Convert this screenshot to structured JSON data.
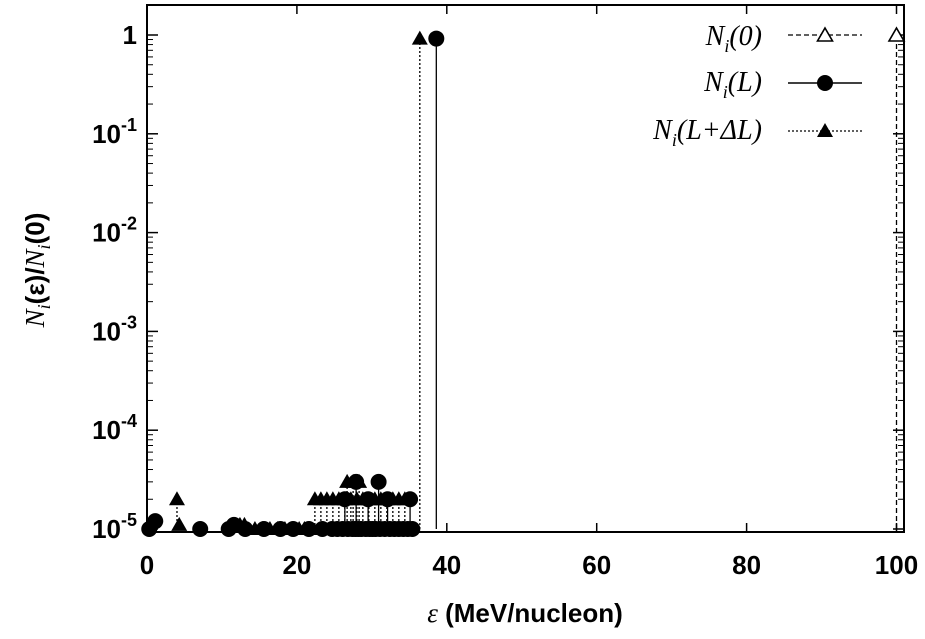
{
  "chart_data": {
    "type": "scatter",
    "title": "",
    "xlabel": {
      "symbol": "ε",
      "rest": " (MeV/nucleon)"
    },
    "ylabel": {
      "num_sym": "N",
      "num_sub": "i",
      "num_arg": "(ε)/",
      "den_sym": "N",
      "den_sub": "i",
      "den_arg": "(0)"
    },
    "xlim": [
      0,
      101
    ],
    "ylim": [
      1e-05,
      2
    ],
    "yscale": "log",
    "grid": false,
    "legend_position": "top-right",
    "x_ticks": [
      {
        "value": 0,
        "label": "0"
      },
      {
        "value": 20,
        "label": "20"
      },
      {
        "value": 40,
        "label": "40"
      },
      {
        "value": 60,
        "label": "60"
      },
      {
        "value": 80,
        "label": "80"
      },
      {
        "value": 100,
        "label": "100"
      }
    ],
    "y_ticks": [
      {
        "value": 1e-05,
        "base": "10",
        "exp": "-5"
      },
      {
        "value": 0.0001,
        "base": "10",
        "exp": "-4"
      },
      {
        "value": 0.001,
        "base": "10",
        "exp": "-3"
      },
      {
        "value": 0.01,
        "base": "10",
        "exp": "-2"
      },
      {
        "value": 0.1,
        "base": "10",
        "exp": "-1"
      },
      {
        "value": 1,
        "base": "1",
        "exp": ""
      }
    ],
    "series": [
      {
        "name": {
          "sym": "N",
          "sub": "i",
          "arg": "(0)"
        },
        "marker": "triangle-open",
        "line": "dashed",
        "x": [
          100
        ],
        "y": [
          1
        ]
      },
      {
        "name": {
          "sym": "N",
          "sub": "i",
          "arg": "(L)"
        },
        "marker": "circle-filled",
        "line": "solid",
        "x": [
          0.3,
          1.1,
          7.1,
          10.9,
          11.6,
          13.1,
          15.6,
          17.8,
          19.5,
          21.6,
          23.4,
          24.7,
          25.4,
          26.1,
          26.8,
          27.4,
          27.8,
          28.2,
          28.6,
          29.2,
          29.7,
          30.1,
          30.5,
          31.1,
          31.7,
          32.4,
          33.0,
          33.6,
          34.2,
          34.8,
          35.4,
          26.4,
          29.5,
          32.1,
          35.1,
          27.9,
          30.9,
          38.6
        ],
        "y": [
          1e-05,
          1.2e-05,
          1e-05,
          1e-05,
          1.1e-05,
          1e-05,
          1e-05,
          1e-05,
          1e-05,
          1e-05,
          1e-05,
          1e-05,
          1e-05,
          1e-05,
          1e-05,
          1e-05,
          1e-05,
          1e-05,
          1e-05,
          1e-05,
          1e-05,
          1e-05,
          1e-05,
          1e-05,
          1e-05,
          1e-05,
          1e-05,
          1e-05,
          1e-05,
          1e-05,
          1e-05,
          2e-05,
          2e-05,
          2e-05,
          2e-05,
          3e-05,
          3e-05,
          0.92
        ]
      },
      {
        "name": {
          "sym": "N",
          "sub": "i",
          "arg": "(L+ΔL)"
        },
        "marker": "triangle-filled",
        "line": "dotted",
        "x": [
          4.0,
          4.3,
          12.4,
          13.0,
          14.4,
          15.4,
          16.4,
          17.4,
          18.4,
          19.4,
          20.3,
          21.0,
          21.7,
          22.4,
          23.2,
          24.0,
          24.8,
          25.6,
          26.4,
          27.2,
          28.0,
          28.8,
          29.6,
          30.4,
          31.2,
          32.0,
          32.8,
          33.6,
          34.4,
          26.7,
          27.5,
          28.3,
          36.4
        ],
        "y": [
          2e-05,
          1.1e-05,
          1.1e-05,
          1.1e-05,
          1e-05,
          1e-05,
          1e-05,
          1e-05,
          1e-05,
          1e-05,
          1e-05,
          1e-05,
          1e-05,
          2e-05,
          2e-05,
          2e-05,
          2e-05,
          2e-05,
          2e-05,
          2e-05,
          2e-05,
          2e-05,
          2e-05,
          2e-05,
          2e-05,
          2e-05,
          2e-05,
          2e-05,
          2e-05,
          3e-05,
          3e-05,
          3e-05,
          0.92
        ]
      }
    ]
  }
}
